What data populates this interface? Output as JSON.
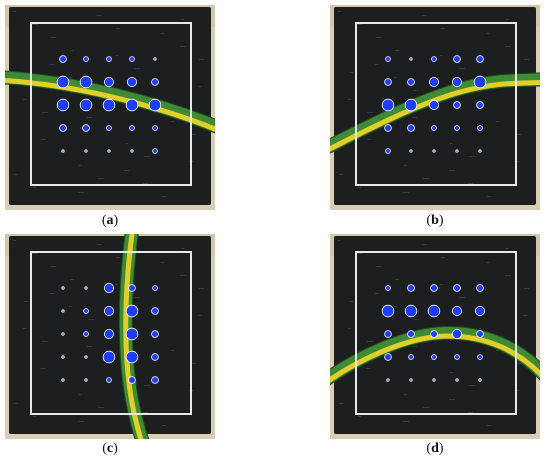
{
  "colors": {
    "background_paper": "#d9cdb5",
    "sensor_pad": "#1d1e20",
    "frame_outline": "#e8e8e8",
    "marker_fill": "#1f3cff",
    "marker_ring": "#ffffff",
    "cable_green": "#3f8a34",
    "cable_yellow": "#e3cf2a"
  },
  "grid": {
    "rows": 5,
    "cols": 5
  },
  "panels": [
    {
      "id": "a",
      "caption": "a",
      "marker_levels": [
        [
          3,
          2,
          2,
          2,
          1
        ],
        [
          5,
          5,
          4,
          4,
          3
        ],
        [
          5,
          5,
          5,
          5,
          5
        ],
        [
          3,
          3,
          2,
          2,
          2
        ],
        [
          1,
          1,
          1,
          1,
          2
        ]
      ]
    },
    {
      "id": "b",
      "caption": "b",
      "marker_levels": [
        [
          2,
          1,
          2,
          3,
          3
        ],
        [
          3,
          3,
          4,
          4,
          5
        ],
        [
          5,
          5,
          4,
          3,
          3
        ],
        [
          3,
          3,
          2,
          2,
          2
        ],
        [
          2,
          1,
          1,
          1,
          1
        ]
      ]
    },
    {
      "id": "c",
      "caption": "c",
      "marker_levels": [
        [
          1,
          1,
          4,
          3,
          2
        ],
        [
          1,
          2,
          4,
          5,
          3
        ],
        [
          1,
          2,
          4,
          5,
          3
        ],
        [
          1,
          1,
          5,
          5,
          3
        ],
        [
          1,
          1,
          2,
          3,
          3
        ]
      ]
    },
    {
      "id": "d",
      "caption": "d",
      "marker_levels": [
        [
          2,
          3,
          3,
          3,
          3
        ],
        [
          5,
          5,
          5,
          4,
          4
        ],
        [
          3,
          3,
          3,
          4,
          3
        ],
        [
          3,
          2,
          2,
          2,
          2
        ],
        [
          1,
          1,
          1,
          1,
          1
        ]
      ]
    }
  ]
}
